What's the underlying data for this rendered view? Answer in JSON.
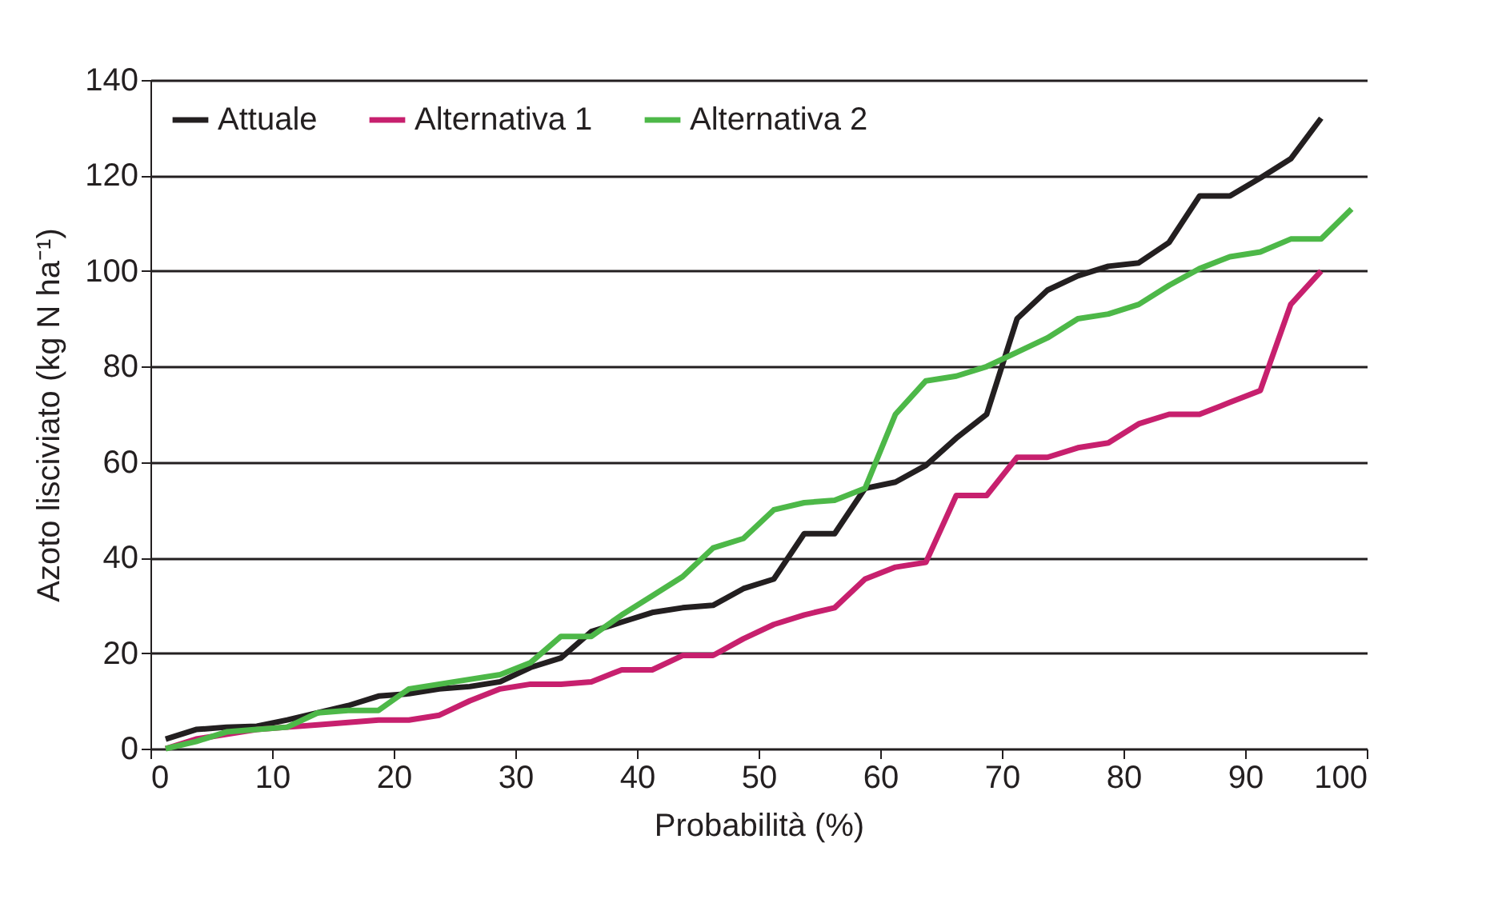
{
  "chart_data": {
    "type": "line",
    "xlabel": "Probabilità (%)",
    "ylabel": "Azoto lisciviato (kg N ha⁻¹)",
    "xlim": [
      0,
      100
    ],
    "xticks": [
      0,
      10,
      20,
      30,
      40,
      50,
      60,
      70,
      80,
      90,
      100
    ],
    "ylim": [
      0,
      140
    ],
    "yticks": [
      0,
      20,
      40,
      60,
      80,
      100,
      120,
      140
    ],
    "grid": "y",
    "legend": "top left",
    "series": [
      {
        "name": "Attuale",
        "color": "#231f20",
        "x": [
          1.25,
          3.75,
          6.25,
          8.75,
          11.25,
          13.75,
          16.25,
          18.75,
          21.25,
          23.75,
          26.25,
          28.75,
          31.25,
          33.75,
          36.25,
          38.75,
          41.25,
          43.75,
          46.25,
          48.75,
          51.25,
          53.75,
          56.25,
          58.75,
          61.25,
          63.75,
          66.25,
          68.75,
          71.25,
          73.75,
          76.25,
          78.75,
          81.25,
          83.75,
          86.25,
          88.75,
          91.25,
          93.75,
          96.25
        ],
        "values": [
          2,
          4,
          4.5,
          4.7,
          6,
          7.5,
          9,
          11,
          11.5,
          12.5,
          13,
          14,
          17,
          19,
          24.5,
          26.5,
          28.5,
          29.5,
          30,
          33.5,
          35.5,
          45,
          45,
          54.5,
          55.8,
          59.3,
          65,
          70,
          90,
          96,
          99,
          101,
          101.7,
          106,
          115.7,
          115.7,
          119.5,
          123.5,
          132
        ]
      },
      {
        "name": "Alternativa 1",
        "color": "#c7206e",
        "x": [
          1.25,
          3.75,
          6.25,
          8.75,
          11.25,
          13.75,
          16.25,
          18.75,
          21.25,
          23.75,
          26.25,
          28.75,
          31.25,
          33.75,
          36.25,
          38.75,
          41.25,
          43.75,
          46.25,
          48.75,
          51.25,
          53.75,
          56.25,
          58.75,
          61.25,
          63.75,
          66.25,
          68.75,
          71.25,
          73.75,
          76.25,
          78.75,
          81.25,
          83.75,
          86.25,
          88.75,
          91.25,
          93.75,
          96.25
        ],
        "values": [
          0,
          2,
          3,
          4,
          4.5,
          5,
          5.5,
          6,
          6,
          7,
          10,
          12.5,
          13.5,
          13.5,
          14,
          16.5,
          16.5,
          19.5,
          19.5,
          23,
          26,
          28,
          29.5,
          35.5,
          38,
          39,
          53,
          53,
          61,
          61,
          63,
          64,
          68,
          70,
          70,
          72.5,
          75,
          93,
          100
        ]
      },
      {
        "name": "Alternativa 2",
        "color": "#4db848",
        "x": [
          1.25,
          3.75,
          6.25,
          8.75,
          11.25,
          13.75,
          16.25,
          18.75,
          21.25,
          23.75,
          26.25,
          28.75,
          31.25,
          33.75,
          36.25,
          38.75,
          41.25,
          43.75,
          46.25,
          48.75,
          51.25,
          53.75,
          56.25,
          58.75,
          61.25,
          63.75,
          66.25,
          68.75,
          71.25,
          73.75,
          76.25,
          78.75,
          81.25,
          83.75,
          86.25,
          88.75,
          91.25,
          93.75,
          96.25,
          98.75
        ],
        "values": [
          0,
          1.5,
          3.5,
          4,
          4.5,
          7.5,
          8,
          8,
          12.5,
          13.5,
          14.5,
          15.5,
          18,
          23.5,
          23.5,
          28,
          32,
          36,
          42,
          44,
          50,
          51.5,
          52,
          54.5,
          70,
          77,
          78,
          80,
          83,
          86,
          90,
          91,
          93,
          97,
          100.5,
          103,
          104,
          106.7,
          106.7,
          113
        ]
      }
    ]
  }
}
